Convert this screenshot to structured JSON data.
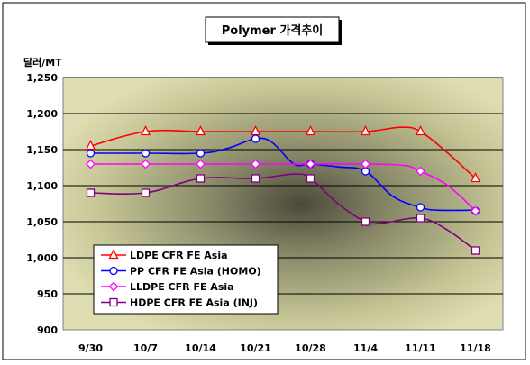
{
  "chart_data": {
    "type": "line",
    "title": "Polymer 가격추이",
    "ylabel": "달러/MT",
    "xlabel": "",
    "categories": [
      "9/30",
      "10/7",
      "10/14",
      "10/21",
      "10/28",
      "11/4",
      "11/11",
      "11/18"
    ],
    "ylim": [
      900,
      1250
    ],
    "yticks": [
      "1,250",
      "1,200",
      "1,150",
      "1,100",
      "1,050",
      "1,000",
      "950",
      "900"
    ],
    "ytick_values": [
      1250,
      1200,
      1150,
      1100,
      1050,
      1000,
      950,
      900
    ],
    "grid": true,
    "legend_position": "bottom-left",
    "series": [
      {
        "name": "LDPE CFR FE Asia",
        "color": "#FF0000",
        "marker": "triangle",
        "values": [
          1155,
          1175,
          1175,
          1175,
          1175,
          1175,
          1175,
          1110
        ],
        "path": [
          [
            0,
            1155
          ],
          [
            1,
            1175
          ],
          [
            2,
            1175
          ],
          [
            3,
            1175
          ],
          [
            4,
            1175
          ],
          [
            5,
            1175
          ],
          [
            5.65,
            1181
          ],
          [
            6,
            1175
          ],
          [
            6.5,
            1145
          ],
          [
            7,
            1110
          ]
        ]
      },
      {
        "name": "PP CFR FE Asia (HOMO)",
        "color": "#0000FF",
        "marker": "circle",
        "values": [
          1145,
          1145,
          1145,
          1165,
          1130,
          1120,
          1070,
          1065
        ],
        "path": [
          [
            0,
            1145
          ],
          [
            1,
            1145
          ],
          [
            2,
            1145
          ],
          [
            2.5,
            1152
          ],
          [
            3,
            1165
          ],
          [
            3.3,
            1160
          ],
          [
            3.7,
            1130
          ],
          [
            4,
            1130
          ],
          [
            4.5,
            1126
          ],
          [
            5,
            1120
          ],
          [
            5.5,
            1085
          ],
          [
            6,
            1070
          ],
          [
            6.3,
            1066
          ],
          [
            7,
            1066
          ]
        ]
      },
      {
        "name": "LLDPE CFR FE Asia",
        "color": "#FF00FF",
        "marker": "diamond",
        "values": [
          1130,
          1130,
          1130,
          1130,
          1130,
          1130,
          1120,
          1065
        ],
        "path": [
          [
            0,
            1130
          ],
          [
            1,
            1130
          ],
          [
            2,
            1130
          ],
          [
            3,
            1130
          ],
          [
            4,
            1130
          ],
          [
            5,
            1130
          ],
          [
            5.7,
            1128
          ],
          [
            6,
            1120
          ],
          [
            6.5,
            1100
          ],
          [
            7,
            1065
          ]
        ]
      },
      {
        "name": "HDPE CFR FE Asia (INJ)",
        "color": "#800080",
        "marker": "square",
        "values": [
          1090,
          1090,
          1110,
          1110,
          1110,
          1050,
          1055,
          1010
        ],
        "path": [
          [
            0,
            1090
          ],
          [
            1,
            1090
          ],
          [
            2,
            1110
          ],
          [
            3,
            1110
          ],
          [
            3.7,
            1116
          ],
          [
            4,
            1110
          ],
          [
            4.5,
            1075
          ],
          [
            5,
            1050
          ],
          [
            5.3,
            1048
          ],
          [
            6,
            1055
          ],
          [
            6.5,
            1038
          ],
          [
            7,
            1010
          ]
        ]
      }
    ]
  }
}
